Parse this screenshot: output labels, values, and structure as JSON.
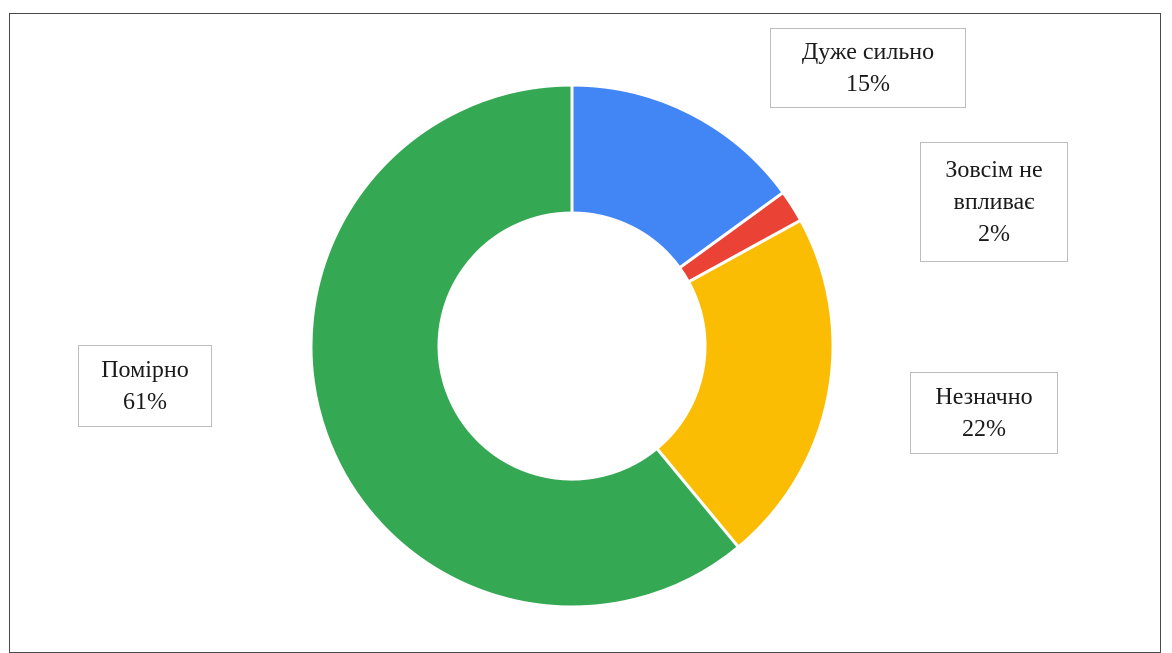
{
  "colors": {
    "frame": "#4a4a4a",
    "label_border": "#bdbdbd",
    "slice_separator": "#ffffff"
  },
  "chart_data": {
    "type": "pie",
    "variant": "donut",
    "title": "",
    "start_angle_deg": 0,
    "direction": "clockwise",
    "categories": [
      "Дуже сильно",
      "Зовсім не впливає",
      "Незначно",
      "Помірно"
    ],
    "values": [
      15,
      2,
      22,
      61
    ],
    "unit": "%",
    "colors": [
      "#4285f4",
      "#ea4335",
      "#fbbc04",
      "#34a853"
    ],
    "labels": [
      {
        "category": "Дуже сильно",
        "value": "15%"
      },
      {
        "category": "Зовсім не впливає",
        "value": "2%"
      },
      {
        "category": "Незначно",
        "value": "22%"
      },
      {
        "category": "Помірно",
        "value": "61%"
      }
    ],
    "legend": "none"
  }
}
